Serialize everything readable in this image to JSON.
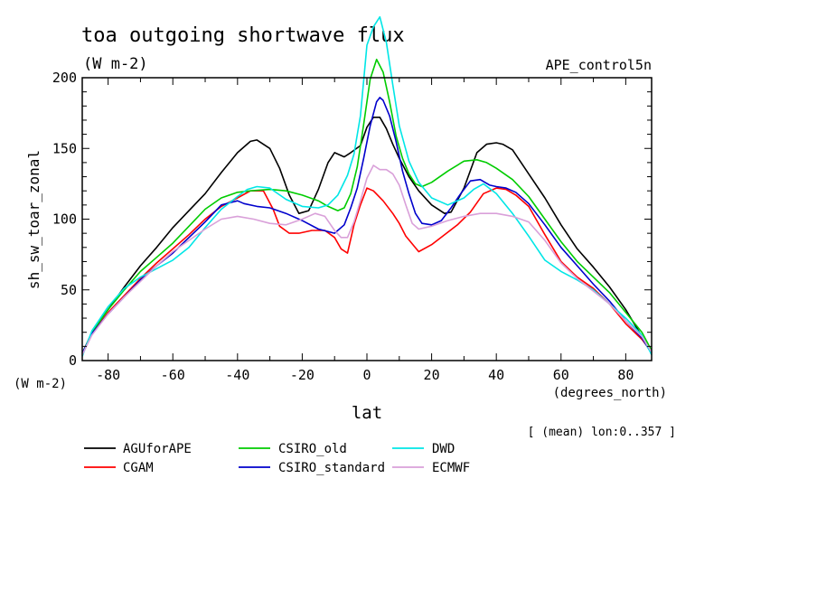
{
  "chart_data": {
    "type": "line",
    "title": "toa outgoing shortwave flux",
    "units": "(W m-2)",
    "experiment": "APE_control5n",
    "ylabel": "sh_sw_toar_zonal",
    "ylabel_units": "(W m-2)",
    "xlabel": "lat",
    "xlabel_units": "(degrees_north)",
    "footnote": "[ (mean) lon:0..357 ]",
    "xlim": [
      -88,
      88
    ],
    "ylim": [
      0,
      200
    ],
    "x_ticks": [
      -80,
      -60,
      -40,
      -20,
      0,
      20,
      40,
      60,
      80
    ],
    "y_ticks": [
      0,
      50,
      100,
      150,
      200
    ],
    "series": [
      {
        "name": "AGUforAPE",
        "color": "#000000",
        "x": [
          -88,
          -85,
          -80,
          -75,
          -70,
          -65,
          -60,
          -55,
          -50,
          -45,
          -40,
          -36,
          -34,
          -30,
          -27,
          -24,
          -21,
          -18,
          -15,
          -12,
          -10,
          -7,
          -5,
          -2,
          0,
          2,
          4,
          6,
          8,
          10,
          13,
          16,
          20,
          24,
          26,
          30,
          34,
          37,
          40,
          42,
          45,
          50,
          55,
          60,
          65,
          70,
          75,
          80,
          85,
          88
        ],
        "y": [
          5,
          20,
          36,
          52,
          67,
          80,
          94,
          106,
          118,
          133,
          147,
          155,
          156,
          150,
          136,
          117,
          104,
          106,
          121,
          140,
          147,
          144,
          147,
          152,
          165,
          172,
          172,
          164,
          153,
          143,
          130,
          120,
          110,
          104,
          105,
          122,
          147,
          153,
          154,
          153,
          149,
          132,
          115,
          96,
          79,
          66,
          52,
          36,
          17,
          6
        ]
      },
      {
        "name": "CGAM",
        "color": "#ff0000",
        "x": [
          -88,
          -85,
          -80,
          -75,
          -70,
          -65,
          -60,
          -55,
          -50,
          -45,
          -40,
          -36,
          -32,
          -29,
          -27,
          -24,
          -21,
          -17,
          -13,
          -10,
          -8,
          -6,
          -4,
          -2,
          0,
          2,
          5,
          8,
          10,
          12,
          16,
          20,
          24,
          28,
          32,
          36,
          40,
          43,
          46,
          50,
          55,
          60,
          65,
          70,
          75,
          80,
          85,
          88
        ],
        "y": [
          4,
          19,
          34,
          46,
          58,
          69,
          79,
          89,
          100,
          109,
          115,
          120,
          120,
          107,
          95,
          90,
          90,
          92,
          92,
          87,
          79,
          76,
          96,
          110,
          122,
          120,
          113,
          104,
          97,
          88,
          77,
          82,
          89,
          96,
          105,
          118,
          122,
          121,
          117,
          109,
          89,
          70,
          59,
          51,
          40,
          26,
          15,
          6
        ]
      },
      {
        "name": "CSIRO_old",
        "color": "#00cc00",
        "x": [
          -88,
          -85,
          -80,
          -75,
          -70,
          -65,
          -60,
          -55,
          -50,
          -45,
          -40,
          -36,
          -30,
          -25,
          -20,
          -15,
          -12,
          -9,
          -7,
          -5,
          -3,
          -1,
          1,
          3,
          5,
          7,
          9,
          11,
          13,
          15,
          17,
          20,
          25,
          30,
          34,
          37,
          40,
          45,
          50,
          55,
          60,
          65,
          70,
          75,
          80,
          85,
          88
        ],
        "y": [
          4,
          20,
          36,
          50,
          63,
          73,
          83,
          95,
          107,
          115,
          119,
          120,
          121,
          120,
          117,
          113,
          109,
          106,
          108,
          118,
          137,
          167,
          199,
          213,
          204,
          183,
          159,
          143,
          132,
          125,
          123,
          126,
          134,
          141,
          142,
          140,
          136,
          128,
          116,
          100,
          84,
          70,
          59,
          48,
          34,
          20,
          7
        ]
      },
      {
        "name": "CSIRO_standard",
        "color": "#0000cc",
        "x": [
          -88,
          -85,
          -80,
          -75,
          -70,
          -65,
          -60,
          -55,
          -50,
          -45,
          -40,
          -38,
          -34,
          -30,
          -25,
          -20,
          -15,
          -10,
          -7,
          -5,
          -3,
          -1,
          1,
          3,
          4,
          5,
          7,
          9,
          11,
          13,
          15,
          17,
          20,
          23,
          26,
          29,
          32,
          35,
          38,
          40,
          43,
          46,
          50,
          55,
          60,
          65,
          70,
          75,
          80,
          85,
          88
        ],
        "y": [
          5,
          19,
          33,
          45,
          57,
          67,
          76,
          87,
          98,
          110,
          113,
          111,
          109,
          108,
          104,
          99,
          93,
          90,
          96,
          108,
          122,
          143,
          166,
          183,
          186,
          184,
          173,
          155,
          134,
          118,
          104,
          97,
          96,
          99,
          108,
          118,
          127,
          128,
          124,
          123,
          122,
          119,
          111,
          96,
          80,
          67,
          54,
          42,
          28,
          16,
          5
        ]
      },
      {
        "name": "DWD",
        "color": "#00e6e6",
        "x": [
          -88,
          -85,
          -80,
          -75,
          -70,
          -65,
          -60,
          -55,
          -50,
          -45,
          -40,
          -37,
          -34,
          -30,
          -25,
          -20,
          -15,
          -12,
          -9,
          -6,
          -4,
          -2,
          0,
          2,
          4,
          6,
          8,
          10,
          13,
          16,
          20,
          25,
          30,
          33,
          36,
          40,
          45,
          50,
          55,
          60,
          65,
          70,
          75,
          80,
          85,
          88
        ],
        "y": [
          3,
          21,
          38,
          51,
          59,
          65,
          71,
          80,
          94,
          107,
          116,
          121,
          123,
          122,
          114,
          109,
          108,
          110,
          117,
          131,
          146,
          173,
          223,
          236,
          243,
          225,
          195,
          166,
          141,
          126,
          115,
          110,
          115,
          121,
          125,
          118,
          104,
          88,
          71,
          63,
          57,
          50,
          40,
          30,
          18,
          4
        ]
      },
      {
        "name": "ECMWF",
        "color": "#d9a0d9",
        "x": [
          -88,
          -85,
          -80,
          -75,
          -70,
          -65,
          -60,
          -55,
          -50,
          -45,
          -40,
          -35,
          -30,
          -25,
          -20,
          -16,
          -13,
          -10,
          -8,
          -6,
          -4,
          -2,
          0,
          2,
          4,
          6,
          8,
          10,
          12,
          14,
          16,
          20,
          25,
          30,
          35,
          40,
          45,
          50,
          55,
          60,
          65,
          70,
          75,
          80,
          85,
          88
        ],
        "y": [
          4,
          18,
          33,
          45,
          56,
          67,
          77,
          85,
          93,
          100,
          102,
          100,
          97,
          96,
          100,
          104,
          102,
          92,
          87,
          87,
          98,
          113,
          129,
          138,
          135,
          135,
          132,
          124,
          110,
          97,
          93,
          95,
          99,
          102,
          104,
          104,
          102,
          98,
          85,
          69,
          58,
          49,
          40,
          28,
          17,
          6
        ]
      }
    ],
    "legend_placement": "bottom",
    "grid": false
  }
}
